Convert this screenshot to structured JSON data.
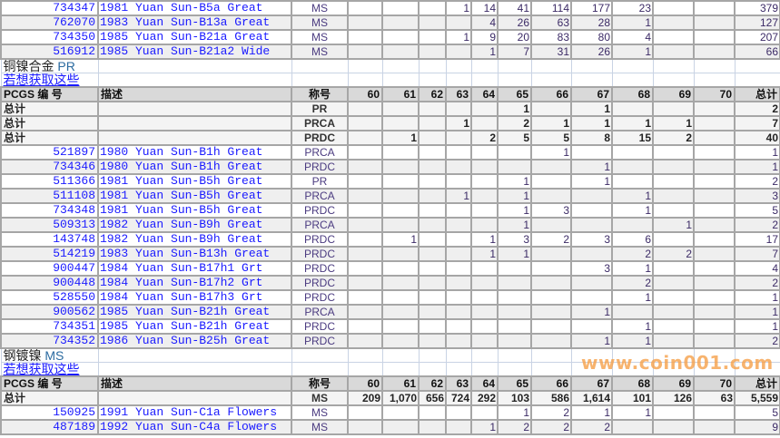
{
  "grade_columns": [
    "60",
    "61",
    "62",
    "63",
    "64",
    "65",
    "66",
    "67",
    "68",
    "69",
    "70",
    "总计"
  ],
  "header": {
    "id": "PCGS 编 号",
    "desc": "描述",
    "grade": "称号"
  },
  "total_label": "总计",
  "link_label": "若想获取这些",
  "sections": [
    {
      "title": "",
      "show_header": false,
      "totals": [],
      "rows": [
        {
          "id": "734347",
          "desc": "1981 Yuan Sun-B5a Great",
          "grade": "MS",
          "values": [
            "",
            "",
            "",
            "1",
            "14",
            "41",
            "114",
            "177",
            "23",
            "",
            "",
            "379"
          ]
        },
        {
          "id": "762070",
          "desc": "1983 Yuan Sun-B13a Great",
          "grade": "MS",
          "values": [
            "",
            "",
            "",
            "",
            "4",
            "26",
            "63",
            "28",
            "1",
            "",
            "",
            "127"
          ]
        },
        {
          "id": "734350",
          "desc": "1985 Yuan Sun-B21a Great",
          "grade": "MS",
          "values": [
            "",
            "",
            "",
            "1",
            "9",
            "20",
            "83",
            "80",
            "4",
            "",
            "",
            "207"
          ]
        },
        {
          "id": "516912",
          "desc": "1985 Yuan Sun-B21a2 Wide",
          "grade": "MS",
          "values": [
            "",
            "",
            "",
            "",
            "1",
            "7",
            "31",
            "26",
            "1",
            "",
            "",
            "66"
          ]
        }
      ]
    },
    {
      "title": "铜镍合金",
      "title_grade": "PR",
      "show_header": true,
      "totals": [
        {
          "grade": "PR",
          "values": [
            "",
            "",
            "",
            "",
            "",
            "1",
            "",
            "1",
            "",
            "",
            "",
            "2"
          ]
        },
        {
          "grade": "PRCA",
          "values": [
            "",
            "",
            "",
            "1",
            "",
            "2",
            "1",
            "1",
            "1",
            "1",
            "",
            "7"
          ]
        },
        {
          "grade": "PRDC",
          "values": [
            "",
            "1",
            "",
            "",
            "2",
            "5",
            "5",
            "8",
            "15",
            "2",
            "",
            "40"
          ]
        }
      ],
      "rows": [
        {
          "id": "521897",
          "desc": "1980 Yuan Sun-B1h Great",
          "grade": "PRCA",
          "values": [
            "",
            "",
            "",
            "",
            "",
            "",
            "1",
            "",
            "",
            "",
            "",
            "1"
          ]
        },
        {
          "id": "734346",
          "desc": "1980 Yuan Sun-B1h Great",
          "grade": "PRDC",
          "values": [
            "",
            "",
            "",
            "",
            "",
            "",
            "",
            "1",
            "",
            "",
            "",
            "1"
          ]
        },
        {
          "id": "511366",
          "desc": "1981 Yuan Sun-B5h Great",
          "grade": "PR",
          "values": [
            "",
            "",
            "",
            "",
            "",
            "1",
            "",
            "1",
            "",
            "",
            "",
            "2"
          ]
        },
        {
          "id": "511108",
          "desc": "1981 Yuan Sun-B5h Great",
          "grade": "PRCA",
          "values": [
            "",
            "",
            "",
            "1",
            "",
            "1",
            "",
            "",
            "1",
            "",
            "",
            "3"
          ]
        },
        {
          "id": "734348",
          "desc": "1981 Yuan Sun-B5h Great",
          "grade": "PRDC",
          "values": [
            "",
            "",
            "",
            "",
            "",
            "1",
            "3",
            "",
            "1",
            "",
            "",
            "5"
          ]
        },
        {
          "id": "509313",
          "desc": "1982 Yuan Sun-B9h Great",
          "grade": "PRCA",
          "values": [
            "",
            "",
            "",
            "",
            "",
            "1",
            "",
            "",
            "",
            "1",
            "",
            "2"
          ]
        },
        {
          "id": "143748",
          "desc": "1982 Yuan Sun-B9h Great",
          "grade": "PRDC",
          "values": [
            "",
            "1",
            "",
            "",
            "1",
            "3",
            "2",
            "3",
            "6",
            "",
            "",
            "17"
          ]
        },
        {
          "id": "514219",
          "desc": "1983 Yuan Sun-B13h Great",
          "grade": "PRDC",
          "values": [
            "",
            "",
            "",
            "",
            "1",
            "1",
            "",
            "",
            "2",
            "2",
            "",
            "7"
          ]
        },
        {
          "id": "900447",
          "desc": "1984 Yuan Sun-B17h1 Grt",
          "grade": "PRDC",
          "values": [
            "",
            "",
            "",
            "",
            "",
            "",
            "",
            "3",
            "1",
            "",
            "",
            "4"
          ]
        },
        {
          "id": "900448",
          "desc": "1984 Yuan Sun-B17h2 Grt",
          "grade": "PRDC",
          "values": [
            "",
            "",
            "",
            "",
            "",
            "",
            "",
            "",
            "2",
            "",
            "",
            "2"
          ]
        },
        {
          "id": "528550",
          "desc": "1984 Yuan Sun-B17h3 Grt",
          "grade": "PRDC",
          "values": [
            "",
            "",
            "",
            "",
            "",
            "",
            "",
            "",
            "1",
            "",
            "",
            "1"
          ]
        },
        {
          "id": "900562",
          "desc": "1985 Yuan Sun-B21h Great",
          "grade": "PRCA",
          "values": [
            "",
            "",
            "",
            "",
            "",
            "",
            "",
            "1",
            "",
            "",
            "",
            "1"
          ]
        },
        {
          "id": "734351",
          "desc": "1985 Yuan Sun-B21h Great",
          "grade": "PRDC",
          "values": [
            "",
            "",
            "",
            "",
            "",
            "",
            "",
            "",
            "1",
            "",
            "",
            "1"
          ]
        },
        {
          "id": "734352",
          "desc": "1986 Yuan Sun-B25h Great",
          "grade": "PRDC",
          "values": [
            "",
            "",
            "",
            "",
            "",
            "",
            "",
            "1",
            "1",
            "",
            "",
            "2"
          ]
        }
      ]
    },
    {
      "title": "钢镀镍",
      "title_grade": "MS",
      "show_header": true,
      "totals": [
        {
          "grade": "MS",
          "values": [
            "209",
            "1,070",
            "656",
            "724",
            "292",
            "103",
            "586",
            "1,614",
            "101",
            "126",
            "63",
            "5,559"
          ]
        }
      ],
      "rows": [
        {
          "id": "150925",
          "desc": "1991 Yuan Sun-C1a Flowers",
          "grade": "MS",
          "values": [
            "",
            "",
            "",
            "",
            "",
            "1",
            "2",
            "1",
            "1",
            "",
            "",
            "5"
          ]
        },
        {
          "id": "487189",
          "desc": "1992 Yuan Sun-C4a Flowers",
          "grade": "MS",
          "values": [
            "",
            "",
            "",
            "",
            "1",
            "2",
            "2",
            "2",
            "",
            "",
            "",
            "9"
          ]
        }
      ]
    }
  ],
  "watermark": "www.coin001.com",
  "colors": {
    "link": "#1a1aff",
    "header_bg": "#d9d9d9",
    "alt_row_bg": "#efefef",
    "grid": "#a6a6a6",
    "watermark": "#f6a14a"
  }
}
